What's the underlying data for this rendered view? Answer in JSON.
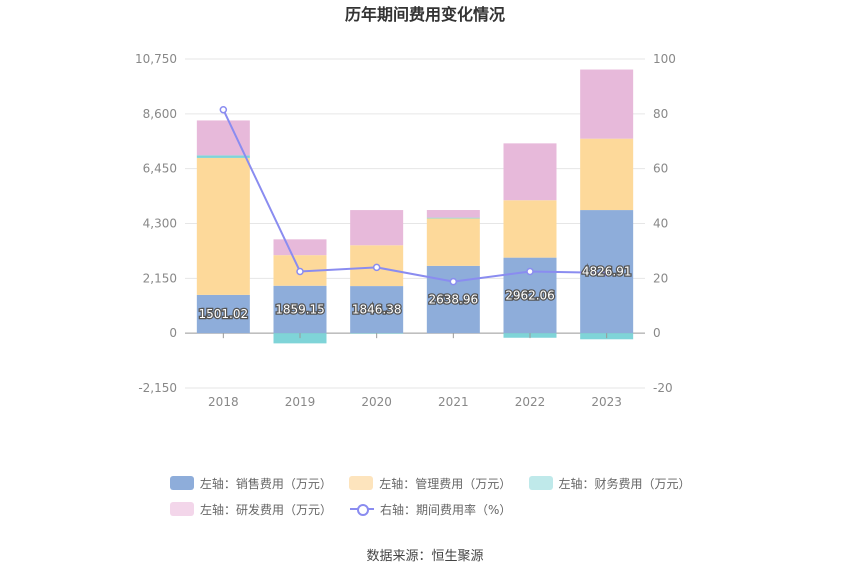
{
  "chart_data": {
    "type": "bar",
    "title": "历年期间费用变化情况",
    "categories": [
      "2018",
      "2019",
      "2020",
      "2021",
      "2022",
      "2023"
    ],
    "y_left": {
      "ticks": [
        "10,750",
        "8,600",
        "6,450",
        "4,300",
        "2,150",
        "0",
        "-2,150"
      ],
      "ylim": [
        -2150,
        10750
      ]
    },
    "y_right": {
      "ticks": [
        "100",
        "80",
        "60",
        "40",
        "20",
        "0",
        "-20"
      ],
      "ylim": [
        -20,
        100
      ]
    },
    "series": [
      {
        "name": "左轴：销售费用（万元）",
        "axis": "left",
        "stack": true,
        "color": "#8eadda",
        "values": [
          1501.02,
          1859.15,
          1846.38,
          2638.96,
          2962.06,
          4826.91
        ],
        "labels": [
          "1501.02",
          "1859.15",
          "1846.38",
          "2638.96",
          "2962.06",
          "4826.91"
        ]
      },
      {
        "name": "左轴：管理费用（万元）",
        "axis": "left",
        "stack": true,
        "color": "#fdd99a",
        "values": [
          5370,
          1200,
          1600,
          1860,
          2250,
          2800
        ]
      },
      {
        "name": "左轴：财务费用（万元）",
        "axis": "left",
        "stack": true,
        "color": "#7fd4d8",
        "values": [
          100,
          -400,
          -20,
          30,
          -180,
          -240
        ]
      },
      {
        "name": "左轴：研发费用（万元）",
        "axis": "left",
        "stack": true,
        "color": "#e7b9da",
        "values": [
          1370,
          620,
          1380,
          300,
          2230,
          2710
        ]
      },
      {
        "name": "右轴：期间费用率（%）",
        "axis": "right",
        "type": "line",
        "color": "#8a8cf0",
        "values": [
          81.5,
          22.5,
          24,
          18.8,
          22.5,
          22
        ]
      }
    ],
    "legend_position": "bottom",
    "grid": true
  },
  "legend": {
    "sales": "左轴：销售费用（万元）",
    "admin": "左轴：管理费用（万元）",
    "finance": "左轴：财务费用（万元）",
    "rd": "左轴：研发费用（万元）",
    "rate": "右轴：期间费用率（%）"
  },
  "colors": {
    "sales": "#8eadda",
    "admin": "#fde4bd",
    "finance": "#bfe9ea",
    "rd": "#f3d6ea"
  },
  "source": "数据来源：恒生聚源"
}
